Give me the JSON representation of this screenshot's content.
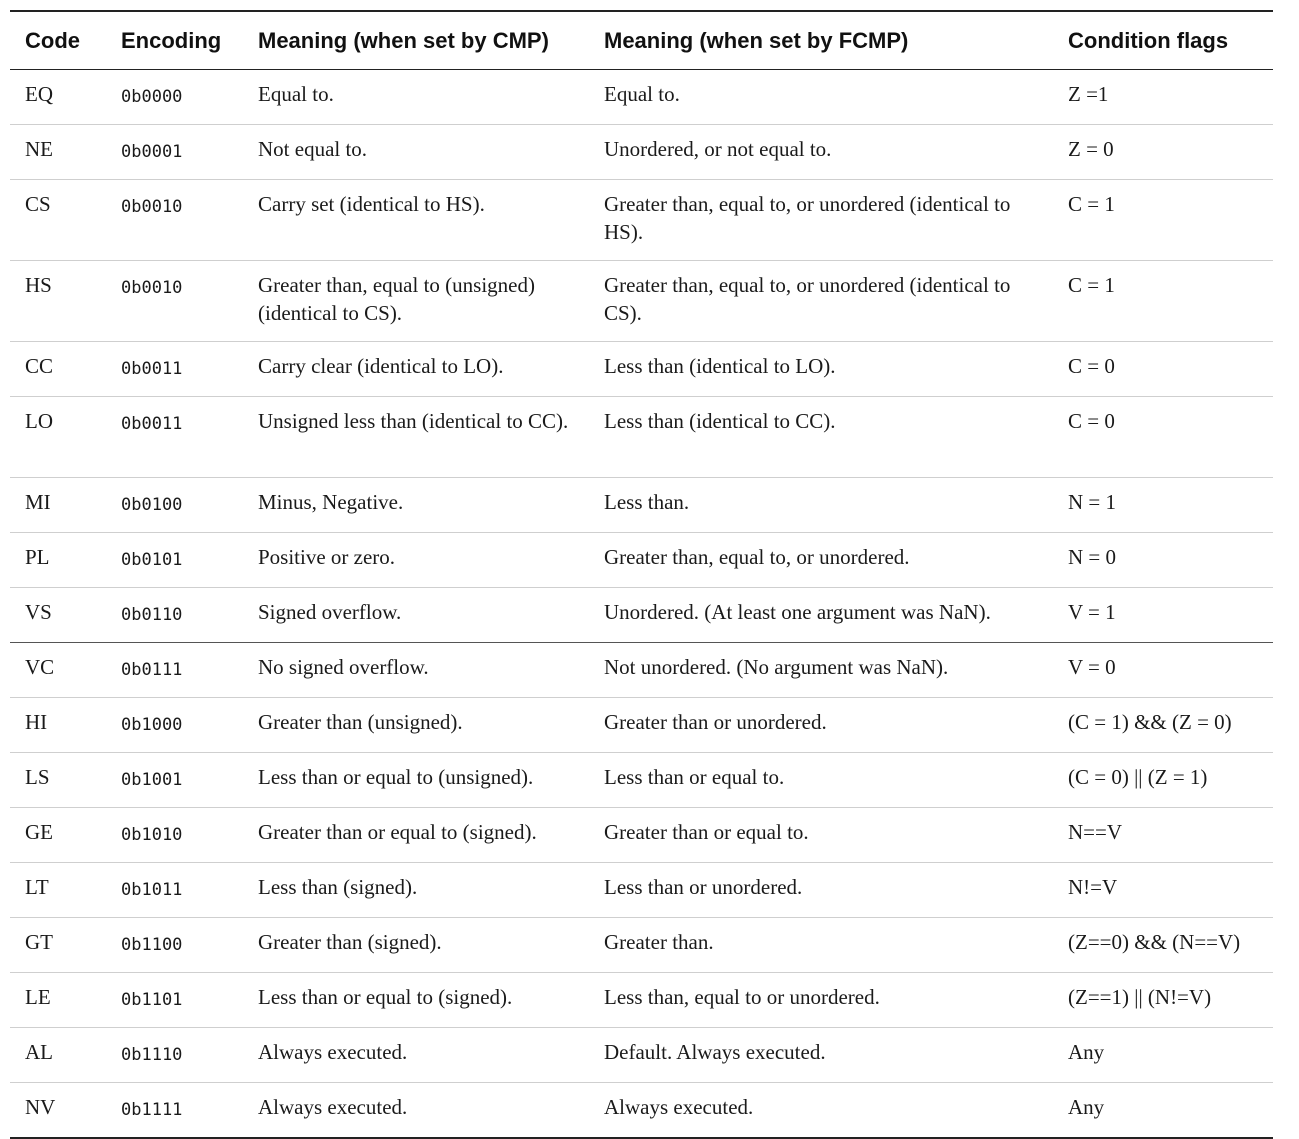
{
  "headers": {
    "code": "Code",
    "encoding": "Encoding",
    "cmp": "Meaning (when set by CMP)",
    "fcmp": "Meaning (when set by FCMP)",
    "flags": "Condition flags"
  },
  "rows": [
    {
      "code": "EQ",
      "encoding": "0b0000",
      "cmp": "Equal to.",
      "fcmp": "Equal to.",
      "flags": "Z =1"
    },
    {
      "code": "NE",
      "encoding": "0b0001",
      "cmp": "Not equal to.",
      "fcmp": "Unordered, or not equal to.",
      "flags": "Z = 0"
    },
    {
      "code": "CS",
      "encoding": "0b0010",
      "cmp": "Carry set (identical to HS).",
      "fcmp": "Greater than, equal to, or unordered (identical to HS).",
      "flags": "C = 1"
    },
    {
      "code": "HS",
      "encoding": "0b0010",
      "cmp": "Greater than, equal to (unsigned) (identical to CS).",
      "fcmp": "Greater than, equal to, or unordered (identical to CS).",
      "flags": "C = 1"
    },
    {
      "code": "CC",
      "encoding": "0b0011",
      "cmp": "Carry clear (identical to LO).",
      "fcmp": "Less than (identical to LO).",
      "flags": "C = 0"
    },
    {
      "code": "LO",
      "encoding": "0b0011",
      "cmp": "Unsigned less than (identical to CC).",
      "fcmp": "Less than (identical to CC).",
      "flags": "C = 0"
    },
    {
      "code": "MI",
      "encoding": "0b0100",
      "cmp": "Minus, Negative.",
      "fcmp": "Less than.",
      "flags": "N = 1"
    },
    {
      "code": "PL",
      "encoding": "0b0101",
      "cmp": "Positive or zero.",
      "fcmp": "Greater than, equal to, or unordered.",
      "flags": "N = 0"
    },
    {
      "code": "VS",
      "encoding": "0b0110",
      "cmp": "Signed overflow.",
      "fcmp": "Unordered. (At least one argument was NaN).",
      "flags": "V = 1"
    },
    {
      "code": "VC",
      "encoding": "0b0111",
      "cmp": "No signed overflow.",
      "fcmp": "Not unordered. (No argument was NaN).",
      "flags": "V = 0"
    },
    {
      "code": "HI",
      "encoding": "0b1000",
      "cmp": "Greater than (unsigned).",
      "fcmp": "Greater than or unordered.",
      "flags": "(C = 1) && (Z = 0)"
    },
    {
      "code": "LS",
      "encoding": "0b1001",
      "cmp": "Less than or equal to (unsigned).",
      "fcmp": "Less than or equal to.",
      "flags": "(C = 0) || (Z = 1)"
    },
    {
      "code": "GE",
      "encoding": "0b1010",
      "cmp": "Greater than or equal to (signed).",
      "fcmp": "Greater than or equal to.",
      "flags": "N==V"
    },
    {
      "code": "LT",
      "encoding": "0b1011",
      "cmp": "Less than (signed).",
      "fcmp": "Less than or unordered.",
      "flags": "N!=V"
    },
    {
      "code": "GT",
      "encoding": "0b1100",
      "cmp": "Greater than (signed).",
      "fcmp": "Greater than.",
      "flags": "(Z==0) && (N==V)"
    },
    {
      "code": "LE",
      "encoding": "0b1101",
      "cmp": "Less than or equal to (signed).",
      "fcmp": "Less than, equal to or unordered.",
      "flags": "(Z==1) || (N!=V)"
    },
    {
      "code": "AL",
      "encoding": "0b1110",
      "cmp": "Always executed.",
      "fcmp": "Default. Always executed.",
      "flags": "Any"
    },
    {
      "code": "NV",
      "encoding": "0b1111",
      "cmp": "Always executed.",
      "fcmp": "Always executed.",
      "flags": "Any"
    }
  ]
}
